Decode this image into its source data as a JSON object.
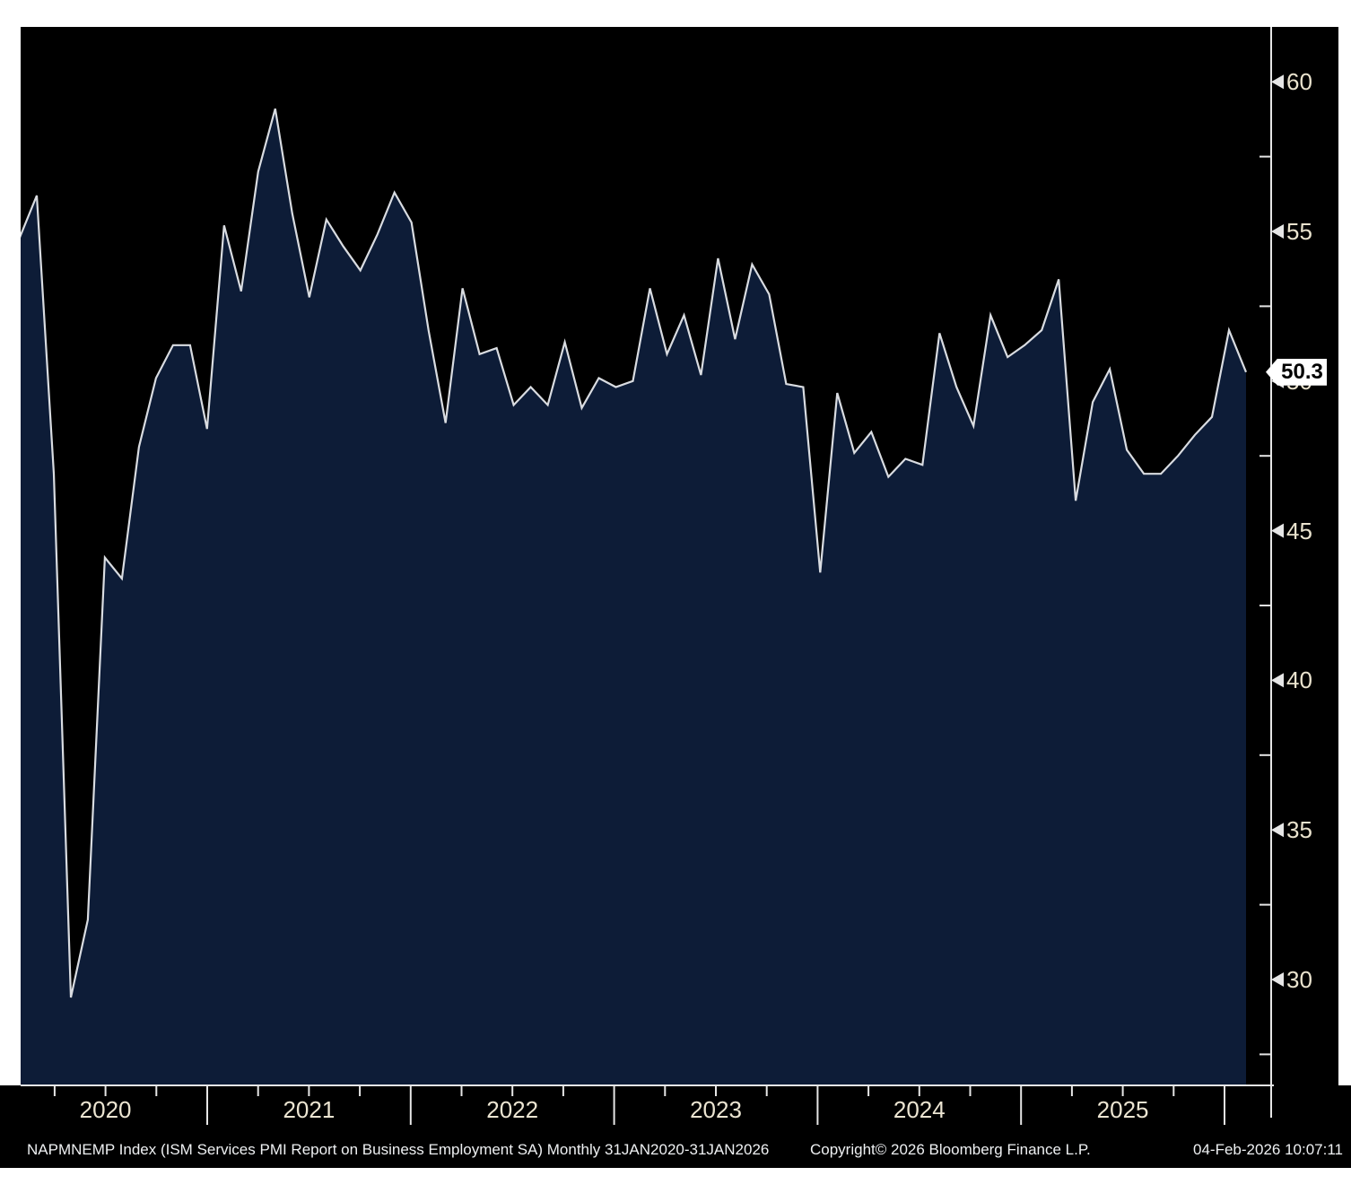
{
  "chart_data": {
    "type": "area",
    "title": "NAPMNEMP Index (ISM Services PMI Report on Business Employment SA)",
    "frequency": "Monthly",
    "date_range": "31JAN2020-31JAN2026",
    "start_month": "JAN2020",
    "end_month": "JAN2026",
    "values": [
      54.8,
      56.2,
      46.9,
      29.4,
      32.0,
      44.1,
      43.4,
      47.8,
      50.1,
      51.2,
      51.2,
      48.4,
      55.2,
      53.0,
      57.0,
      59.1,
      55.6,
      52.8,
      55.4,
      54.5,
      53.7,
      54.9,
      56.3,
      55.3,
      51.7,
      48.6,
      53.1,
      50.9,
      51.1,
      49.2,
      49.8,
      49.2,
      51.3,
      49.1,
      50.1,
      49.8,
      50.0,
      53.1,
      50.9,
      52.2,
      50.2,
      54.1,
      51.4,
      53.9,
      52.9,
      49.9,
      49.8,
      43.6,
      49.6,
      47.6,
      48.3,
      46.8,
      47.4,
      47.2,
      51.6,
      49.8,
      48.5,
      52.2,
      50.8,
      51.2,
      51.7,
      53.4,
      46.0,
      49.3,
      50.4,
      47.7,
      46.9,
      46.9,
      47.5,
      48.2,
      48.8,
      51.7,
      50.3
    ],
    "y_ticks": [
      60,
      55,
      50,
      45,
      40,
      35,
      30
    ],
    "y_minor_ticks": [
      57.5,
      52.5,
      47.5,
      42.5,
      37.5,
      32.5,
      27.5
    ],
    "year_labels": [
      "2020",
      "2021",
      "2022",
      "2023",
      "2024",
      "2025"
    ],
    "ylim": [
      26.5,
      61.8
    ],
    "xlabel": "",
    "ylabel": "",
    "grid": false,
    "legend_position": "none",
    "last_value": 50.3,
    "last_value_label": "50.3"
  },
  "colors": {
    "page_bg": "#ffffff",
    "plot_bg": "#000000",
    "area_fill": "#0d1c37",
    "line": "#d9dce1",
    "axis": "#e6e6e6",
    "tick_label": "#eae3ce",
    "footer_text": "#eef0f2",
    "badge_bg": "#ffffff",
    "badge_text": "#000000"
  },
  "footer": {
    "description": "NAPMNEMP Index (ISM Services PMI Report on Business Employment SA) Monthly 31JAN2020-31JAN2026",
    "copyright": "Copyright© 2026 Bloomberg Finance L.P.",
    "timestamp": "04-Feb-2026 10:07:11"
  }
}
